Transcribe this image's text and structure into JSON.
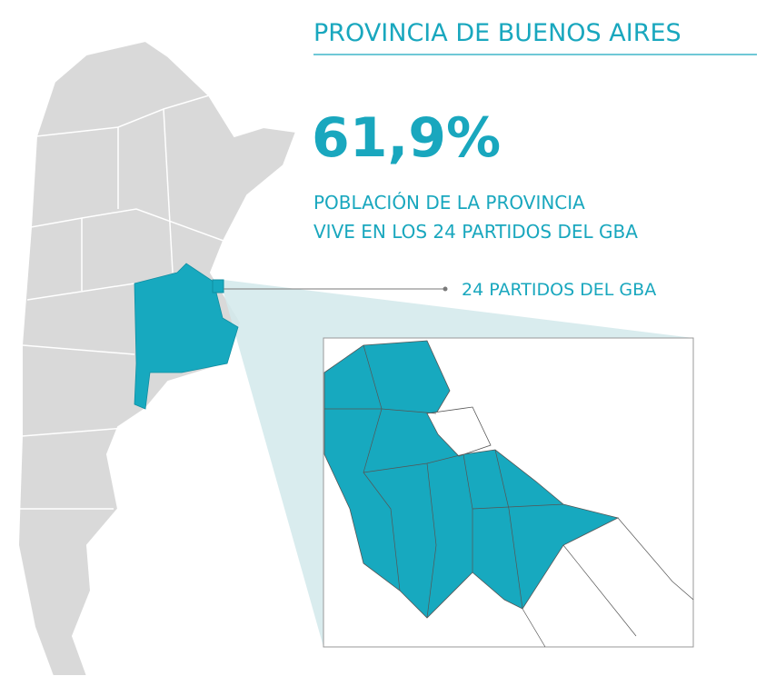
{
  "title": "PROVINCIA DE BUENOS AIRES",
  "stat": "61,9%",
  "subtitle": {
    "lines": [
      "POBLACIÓN DE LA PROVINCIA",
      "VIVE EN LOS 24 PARTIDOS DEL GBA"
    ]
  },
  "callout": "24 PARTIDOS DEL GBA"
}
